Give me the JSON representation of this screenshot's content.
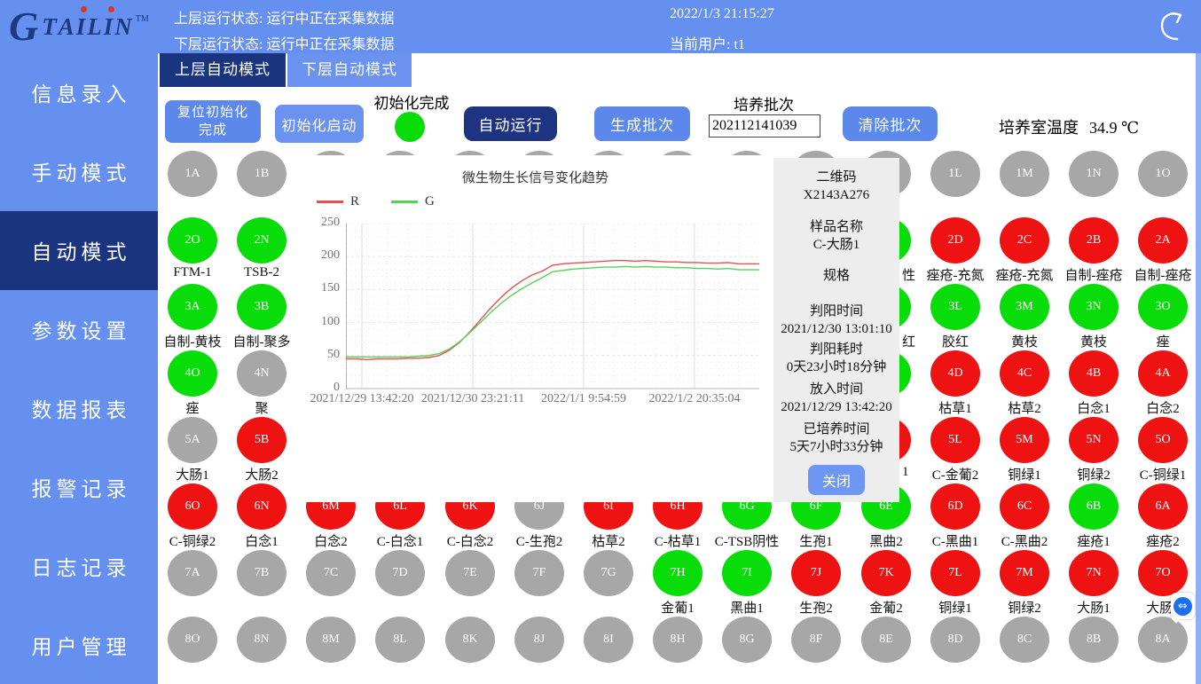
{
  "palette": {
    "header_blue": "#6590f0",
    "active_navy": "#1b3480",
    "button_blue": "#5d88eb",
    "tab_inactive_blue": "#6a92ee",
    "well_green": "#09dd09",
    "well_red": "#ee1212",
    "well_gray": "#a7a7a7",
    "panel_gray": "#ededed",
    "line_red": "#e05252",
    "line_green": "#58d058"
  },
  "header": {
    "logo_text": "TAILIN",
    "trademark": "TM",
    "status_upper": "上层运行状态: 运行中正在采集数据",
    "status_lower": "下层运行状态: 运行中正在采集数据",
    "datetime": "2022/1/3 21:15:27",
    "current_user": "当前用户: t1"
  },
  "icons": {
    "back_icon": "undo-arrow",
    "remote_glyph": "⇔"
  },
  "sidebar": {
    "items": [
      {
        "label": "信息录入",
        "active": false
      },
      {
        "label": "手动模式",
        "active": false
      },
      {
        "label": "自动模式",
        "active": true
      },
      {
        "label": "参数设置",
        "active": false
      },
      {
        "label": "数据报表",
        "active": false
      },
      {
        "label": "报警记录",
        "active": false
      },
      {
        "label": "日志记录",
        "active": false
      },
      {
        "label": "用户管理",
        "active": false
      }
    ]
  },
  "tabs": [
    {
      "label": "上层自动模式",
      "active": true
    },
    {
      "label": "下层自动模式",
      "active": false
    }
  ],
  "toolbar": {
    "reset_init": "复位初始化完成",
    "init_start": "初始化启动",
    "init_done": "初始化完成",
    "auto_run": "自动运行",
    "gen_batch": "生成批次",
    "batch_label": "培养批次",
    "batch_value": "202112141039",
    "clear_batch": "清除批次",
    "temp_label": "培养室温度",
    "temp_value": "34.9 ℃"
  },
  "chart_data": {
    "type": "line",
    "title": "微生物生长信号变化趋势",
    "xlabel": "",
    "ylabel": "",
    "ylim": [
      0,
      250
    ],
    "y_ticks": [
      0,
      50,
      100,
      150,
      200,
      250
    ],
    "x_ticks": [
      "2021/12/29 13:42:20",
      "2021/12/30 23:21:11",
      "2022/1/1 9:54:59",
      "2022/1/2 20:35:04"
    ],
    "grid": true,
    "legend_position": "top-left",
    "series": [
      {
        "name": "R",
        "color": "#e05252",
        "values": [
          45,
          45,
          44,
          45,
          45,
          45,
          46,
          46,
          47,
          50,
          58,
          70,
          86,
          104,
          122,
          138,
          152,
          163,
          172,
          178,
          187,
          189,
          190,
          191,
          192,
          193,
          194,
          194,
          193,
          194,
          193,
          192,
          192,
          191,
          191,
          190,
          190,
          191,
          189,
          189,
          189
        ]
      },
      {
        "name": "G",
        "color": "#58d058",
        "values": [
          48,
          48,
          48,
          48,
          48,
          48,
          48,
          49,
          50,
          53,
          60,
          71,
          85,
          100,
          115,
          129,
          141,
          151,
          160,
          168,
          177,
          179,
          181,
          182,
          183,
          184,
          184,
          185,
          184,
          185,
          184,
          184,
          183,
          183,
          182,
          182,
          181,
          182,
          180,
          180,
          180
        ]
      }
    ]
  },
  "sample_panel": {
    "fields": [
      {
        "label": "二维码",
        "value": "X2143A276"
      },
      {
        "label": "样品名称",
        "value": "C-大肠1"
      },
      {
        "label": "规格",
        "value": ""
      },
      {
        "label": "判阳时间",
        "value": "2021/12/30 13:01:10"
      },
      {
        "label": "判阳耗时",
        "value": "0天23小时18分钟"
      },
      {
        "label": "放入时间",
        "value": "2021/12/29 13:42:20"
      },
      {
        "label": "已培养时间",
        "value": "5天7小时33分钟"
      }
    ],
    "close_label": "关闭"
  },
  "grid": {
    "rows": [
      {
        "cells": [
          {
            "id": "1A",
            "col": 0,
            "state": "gray"
          },
          {
            "id": "1B",
            "col": 1,
            "state": "gray"
          },
          {
            "id": "1C",
            "col": 2,
            "state": "gray"
          },
          {
            "id": "1D",
            "col": 3,
            "state": "gray"
          },
          {
            "id": "1E",
            "col": 4,
            "state": "gray"
          },
          {
            "id": "1F",
            "col": 5,
            "state": "gray"
          },
          {
            "id": "1G",
            "col": 6,
            "state": "gray"
          },
          {
            "id": "1H",
            "col": 7,
            "state": "gray"
          },
          {
            "id": "1I",
            "col": 8,
            "state": "gray"
          },
          {
            "id": "1J",
            "col": 9,
            "state": "gray"
          },
          {
            "id": "1K",
            "col": 10,
            "state": "gray"
          },
          {
            "id": "1L",
            "col": 11,
            "state": "gray"
          },
          {
            "id": "1M",
            "col": 12,
            "state": "gray"
          },
          {
            "id": "1N",
            "col": 13,
            "state": "gray"
          },
          {
            "id": "1O",
            "col": 14,
            "state": "gray"
          }
        ]
      },
      {
        "cells": [
          {
            "id": "2O",
            "col": 0,
            "state": "green",
            "label": "FTM-1"
          },
          {
            "id": "2N",
            "col": 1,
            "state": "green",
            "label": "TSB-2"
          },
          {
            "id": "2E",
            "col": 10,
            "state": "green",
            "label": "性",
            "partial": true
          },
          {
            "id": "2D",
            "col": 11,
            "state": "red",
            "label": "痤疮-充氮"
          },
          {
            "id": "2C",
            "col": 12,
            "state": "red",
            "label": "痤疮-充氮"
          },
          {
            "id": "2B",
            "col": 13,
            "state": "red",
            "label": "自制-痤疮"
          },
          {
            "id": "2A",
            "col": 14,
            "state": "red",
            "label": "自制-痤疮"
          }
        ]
      },
      {
        "cells": [
          {
            "id": "3A",
            "col": 0,
            "state": "green",
            "label": "自制-黄枝"
          },
          {
            "id": "3B",
            "col": 1,
            "state": "green",
            "label": "自制-聚多"
          },
          {
            "id": "3K",
            "col": 10,
            "state": "green",
            "label": "红",
            "partial": true
          },
          {
            "id": "3L",
            "col": 11,
            "state": "green",
            "label": "胶红"
          },
          {
            "id": "3M",
            "col": 12,
            "state": "green",
            "label": "黄枝"
          },
          {
            "id": "3N",
            "col": 13,
            "state": "green",
            "label": "黄枝"
          },
          {
            "id": "3O",
            "col": 14,
            "state": "green",
            "label": "痤"
          }
        ]
      },
      {
        "cells": [
          {
            "id": "4O",
            "col": 0,
            "state": "green",
            "label": "痤"
          },
          {
            "id": "4N",
            "col": 1,
            "state": "gray",
            "label": "聚"
          },
          {
            "id": "4E",
            "col": 10,
            "state": "green"
          },
          {
            "id": "4D",
            "col": 11,
            "state": "red",
            "label": "枯草1"
          },
          {
            "id": "4C",
            "col": 12,
            "state": "red",
            "label": "枯草2"
          },
          {
            "id": "4B",
            "col": 13,
            "state": "red",
            "label": "白念1"
          },
          {
            "id": "4A",
            "col": 14,
            "state": "red",
            "label": "白念2"
          }
        ]
      },
      {
        "cells": [
          {
            "id": "5A",
            "col": 0,
            "state": "gray",
            "label": "大肠1"
          },
          {
            "id": "5B",
            "col": 1,
            "state": "red",
            "label": "大肠2"
          },
          {
            "id": "5K",
            "col": 10,
            "state": "red",
            "label": "1",
            "partial": true
          },
          {
            "id": "5L",
            "col": 11,
            "state": "red",
            "label": "C-金葡2"
          },
          {
            "id": "5M",
            "col": 12,
            "state": "red",
            "label": "铜绿1"
          },
          {
            "id": "5N",
            "col": 13,
            "state": "red",
            "label": "铜绿2"
          },
          {
            "id": "5O",
            "col": 14,
            "state": "red",
            "label": "C-铜绿1"
          }
        ]
      },
      {
        "cells": [
          {
            "id": "6O",
            "col": 0,
            "state": "red",
            "label": "C-铜绿2"
          },
          {
            "id": "6N",
            "col": 1,
            "state": "red",
            "label": "白念1"
          },
          {
            "id": "6M",
            "col": 2,
            "state": "red",
            "label": "白念2"
          },
          {
            "id": "6L",
            "col": 3,
            "state": "red",
            "label": "C-白念1"
          },
          {
            "id": "6K",
            "col": 4,
            "state": "red",
            "label": "C-白念2"
          },
          {
            "id": "6J",
            "col": 5,
            "state": "gray",
            "label": "C-生孢2"
          },
          {
            "id": "6I",
            "col": 6,
            "state": "red",
            "label": "枯草2"
          },
          {
            "id": "6H",
            "col": 7,
            "state": "red",
            "label": "C-枯草1"
          },
          {
            "id": "6G",
            "col": 8,
            "state": "green",
            "label": "C-TSB阴性"
          },
          {
            "id": "6F",
            "col": 9,
            "state": "green",
            "label": "生孢1"
          },
          {
            "id": "6E",
            "col": 10,
            "state": "green",
            "label": "黑曲2"
          },
          {
            "id": "6D",
            "col": 11,
            "state": "red",
            "label": "C-黑曲1"
          },
          {
            "id": "6C",
            "col": 12,
            "state": "red",
            "label": "C-黑曲2"
          },
          {
            "id": "6B",
            "col": 13,
            "state": "green",
            "label": "痤疮1"
          },
          {
            "id": "6A",
            "col": 14,
            "state": "red",
            "label": "痤疮2"
          }
        ]
      },
      {
        "cells": [
          {
            "id": "7A",
            "col": 0,
            "state": "gray"
          },
          {
            "id": "7B",
            "col": 1,
            "state": "gray"
          },
          {
            "id": "7C",
            "col": 2,
            "state": "gray"
          },
          {
            "id": "7D",
            "col": 3,
            "state": "gray"
          },
          {
            "id": "7E",
            "col": 4,
            "state": "gray"
          },
          {
            "id": "7F",
            "col": 5,
            "state": "gray"
          },
          {
            "id": "7G",
            "col": 6,
            "state": "gray"
          },
          {
            "id": "7H",
            "col": 7,
            "state": "green",
            "label": "金葡1"
          },
          {
            "id": "7I",
            "col": 8,
            "state": "green",
            "label": "黑曲1"
          },
          {
            "id": "7J",
            "col": 9,
            "state": "red",
            "label": "生孢2"
          },
          {
            "id": "7K",
            "col": 10,
            "state": "red",
            "label": "金葡2"
          },
          {
            "id": "7L",
            "col": 11,
            "state": "red",
            "label": "铜绿1"
          },
          {
            "id": "7M",
            "col": 12,
            "state": "red",
            "label": "铜绿2"
          },
          {
            "id": "7N",
            "col": 13,
            "state": "red",
            "label": "大肠1"
          },
          {
            "id": "7O",
            "col": 14,
            "state": "red",
            "label": "大肠2"
          }
        ]
      },
      {
        "cells": [
          {
            "id": "8O",
            "col": 0,
            "state": "gray"
          },
          {
            "id": "8N",
            "col": 1,
            "state": "gray"
          },
          {
            "id": "8M",
            "col": 2,
            "state": "gray"
          },
          {
            "id": "8L",
            "col": 3,
            "state": "gray"
          },
          {
            "id": "8K",
            "col": 4,
            "state": "gray"
          },
          {
            "id": "8J",
            "col": 5,
            "state": "gray"
          },
          {
            "id": "8I",
            "col": 6,
            "state": "gray"
          },
          {
            "id": "8H",
            "col": 7,
            "state": "gray"
          },
          {
            "id": "8G",
            "col": 8,
            "state": "gray"
          },
          {
            "id": "8F",
            "col": 9,
            "state": "gray"
          },
          {
            "id": "8E",
            "col": 10,
            "state": "gray"
          },
          {
            "id": "8D",
            "col": 11,
            "state": "gray"
          },
          {
            "id": "8C",
            "col": 12,
            "state": "gray"
          },
          {
            "id": "8B",
            "col": 13,
            "state": "gray"
          },
          {
            "id": "8A",
            "col": 14,
            "state": "gray"
          }
        ]
      }
    ]
  }
}
